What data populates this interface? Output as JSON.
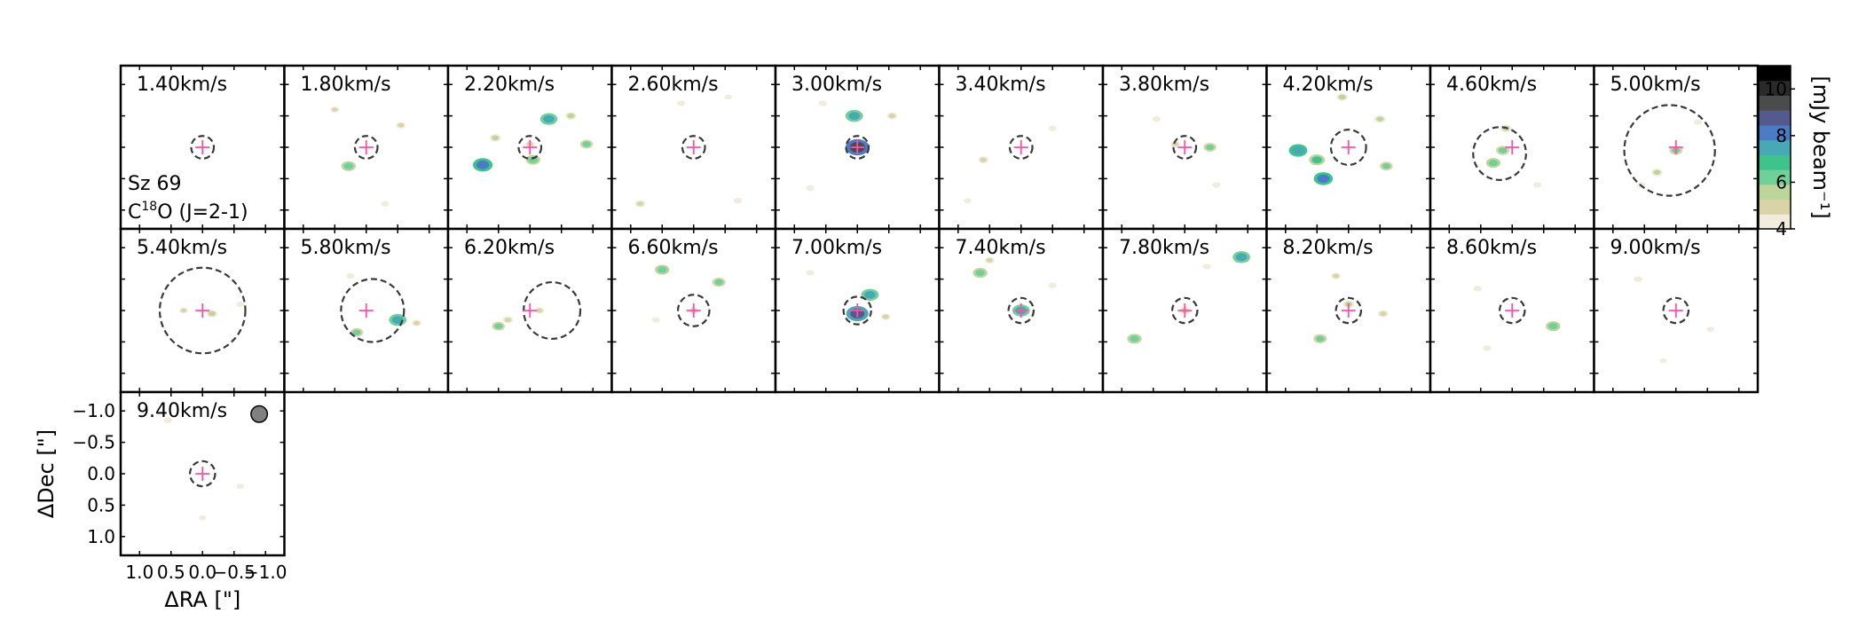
{
  "chart_data": {
    "type": "heatmap",
    "subtype": "channel-map grid",
    "object_label": "Sz 69",
    "line_label": {
      "pre": "C",
      "sup": "18",
      "post": "O (J=2-1)"
    },
    "channel_unit": "km/s",
    "channels": [
      {
        "velocity": "1.40",
        "mask": [
          [
            0.0,
            0.0,
            0.18,
            0.18
          ]
        ]
      },
      {
        "velocity": "1.80",
        "mask": [
          [
            0.0,
            0.0,
            0.18,
            0.18
          ]
        ],
        "blobs": [
          [
            0.28,
            0.3,
            6.5
          ],
          [
            -0.55,
            -0.35,
            5
          ],
          [
            0.5,
            -0.6,
            4.8
          ],
          [
            -0.3,
            0.9,
            4.5
          ]
        ]
      },
      {
        "velocity": "2.20",
        "mask": [
          [
            0.0,
            0.0,
            0.18,
            0.18
          ]
        ],
        "blobs": [
          [
            0.75,
            0.28,
            8.2
          ],
          [
            -0.05,
            0.2,
            6.5
          ],
          [
            -0.9,
            -0.05,
            6
          ],
          [
            0.55,
            -0.15,
            5.5
          ],
          [
            -0.65,
            -0.5,
            5.5
          ],
          [
            -0.3,
            -0.45,
            7.4
          ],
          [
            0.0,
            -0.05,
            5
          ]
        ]
      },
      {
        "velocity": "2.60",
        "mask": [
          [
            0.0,
            0.0,
            0.18,
            0.18
          ]
        ],
        "blobs": [
          [
            0.85,
            0.9,
            5.2
          ],
          [
            -0.7,
            0.85,
            4.5
          ],
          [
            0.2,
            -0.7,
            4.5
          ],
          [
            -0.55,
            -0.8,
            4.2
          ]
        ]
      },
      {
        "velocity": "3.00",
        "mask": [
          [
            0.0,
            0.0,
            0.18,
            0.18
          ]
        ],
        "blobs": [
          [
            0.0,
            0.0,
            9.5
          ],
          [
            0.05,
            -0.5,
            7.5
          ],
          [
            -0.55,
            -0.5,
            5.2
          ],
          [
            0.75,
            0.65,
            4.5
          ],
          [
            0.55,
            -0.7,
            4.5
          ]
        ]
      },
      {
        "velocity": "3.40",
        "mask": [
          [
            0.0,
            0.0,
            0.18,
            0.18
          ]
        ],
        "blobs": [
          [
            0.6,
            0.2,
            5.2
          ],
          [
            -0.5,
            -0.3,
            4.5
          ],
          [
            0.85,
            0.85,
            4.3
          ]
        ]
      },
      {
        "velocity": "3.80",
        "mask": [
          [
            0.0,
            0.0,
            0.18,
            0.18
          ]
        ],
        "blobs": [
          [
            -0.4,
            0.0,
            6
          ],
          [
            0.15,
            -0.05,
            5
          ],
          [
            -0.5,
            0.6,
            4.5
          ],
          [
            0.45,
            -0.45,
            4.5
          ]
        ]
      },
      {
        "velocity": "4.20",
        "mask": [
          [
            0.0,
            0.0,
            0.28,
            0.28
          ]
        ],
        "blobs": [
          [
            0.4,
            0.5,
            8
          ],
          [
            0.5,
            0.2,
            7
          ],
          [
            0.8,
            0.05,
            7.8
          ],
          [
            -0.6,
            0.3,
            6
          ],
          [
            -0.5,
            -0.45,
            5.5
          ],
          [
            0.1,
            -0.8,
            5.5
          ]
        ]
      },
      {
        "velocity": "4.60",
        "mask": [
          [
            0.2,
            0.1,
            0.42,
            0.68
          ]
        ],
        "blobs": [
          [
            0.3,
            0.25,
            6.5
          ],
          [
            0.15,
            0.05,
            6.2
          ],
          [
            0.1,
            -0.3,
            5.5
          ],
          [
            -0.4,
            0.6,
            4.5
          ]
        ]
      },
      {
        "velocity": "5.00",
        "mask": [
          [
            0.1,
            0.05,
            0.72,
            0.72
          ]
        ],
        "blobs": [
          [
            0.0,
            0.05,
            6
          ],
          [
            0.3,
            0.4,
            5.5
          ],
          [
            0.55,
            0.6,
            4.5
          ],
          [
            -0.35,
            -0.4,
            4.5
          ]
        ]
      },
      {
        "velocity": "5.40",
        "mask": [
          [
            0.0,
            0.0,
            0.68,
            0.68
          ]
        ],
        "blobs": [
          [
            -0.15,
            0.05,
            5.5
          ],
          [
            0.3,
            0.0,
            4.7
          ],
          [
            -0.6,
            -0.1,
            4.5
          ]
        ]
      },
      {
        "velocity": "5.80",
        "mask": [
          [
            -0.1,
            0.0,
            0.5,
            0.68
          ]
        ],
        "blobs": [
          [
            -0.5,
            0.15,
            7.5
          ],
          [
            0.15,
            0.35,
            6
          ],
          [
            -0.8,
            0.2,
            5
          ],
          [
            0.25,
            -0.55,
            4.5
          ]
        ]
      },
      {
        "velocity": "6.20",
        "mask": [
          [
            -0.35,
            0.0,
            0.45,
            0.42
          ]
        ],
        "blobs": [
          [
            0.5,
            0.25,
            6
          ],
          [
            0.35,
            0.15,
            5.2
          ],
          [
            -0.15,
            0.0,
            5
          ]
        ]
      },
      {
        "velocity": "6.60",
        "mask": [
          [
            0.0,
            0.0,
            0.25,
            0.22
          ]
        ],
        "blobs": [
          [
            0.0,
            0.0,
            5.2
          ],
          [
            -0.4,
            -0.45,
            6.2
          ],
          [
            0.5,
            -0.65,
            6.5
          ],
          [
            0.6,
            0.15,
            4.5
          ]
        ]
      },
      {
        "velocity": "7.00",
        "mask": [
          [
            0.0,
            0.0,
            0.22,
            0.22
          ]
        ],
        "blobs": [
          [
            0.0,
            0.05,
            9
          ],
          [
            -0.2,
            -0.25,
            7.5
          ],
          [
            -0.45,
            0.1,
            5
          ],
          [
            0.75,
            -0.6,
            4.5
          ]
        ]
      },
      {
        "velocity": "7.40",
        "mask": [
          [
            0.0,
            0.0,
            0.2,
            0.2
          ]
        ],
        "blobs": [
          [
            0.0,
            0.0,
            7.5
          ],
          [
            0.65,
            -0.6,
            6.5
          ],
          [
            0.5,
            -0.8,
            5
          ],
          [
            -0.5,
            -0.4,
            4.5
          ]
        ]
      },
      {
        "velocity": "7.80",
        "mask": [
          [
            0.0,
            0.0,
            0.2,
            0.2
          ]
        ],
        "blobs": [
          [
            0.0,
            0.0,
            5.5
          ],
          [
            -0.9,
            -0.85,
            7.5
          ],
          [
            0.8,
            0.45,
            6.5
          ],
          [
            -0.35,
            -0.7,
            4.5
          ]
        ]
      },
      {
        "velocity": "8.20",
        "mask": [
          [
            0.0,
            0.0,
            0.2,
            0.2
          ]
        ],
        "blobs": [
          [
            0.0,
            -0.1,
            5.5
          ],
          [
            0.45,
            0.45,
            6.2
          ],
          [
            -0.55,
            0.05,
            5.2
          ],
          [
            0.2,
            -0.55,
            5
          ]
        ]
      },
      {
        "velocity": "8.60",
        "mask": [
          [
            0.0,
            0.0,
            0.2,
            0.2
          ]
        ],
        "blobs": [
          [
            -0.65,
            0.25,
            6.5
          ],
          [
            0.4,
            0.6,
            4.5
          ],
          [
            0.55,
            -0.35,
            4.5
          ]
        ]
      },
      {
        "velocity": "9.00",
        "mask": [
          [
            0.0,
            0.0,
            0.2,
            0.2
          ]
        ],
        "blobs": [
          [
            0.6,
            -0.5,
            4.6
          ],
          [
            -0.55,
            0.3,
            4.3
          ],
          [
            0.2,
            0.8,
            4.2
          ]
        ]
      },
      {
        "velocity": "9.40",
        "mask": [
          [
            0.0,
            0.0,
            0.2,
            0.2
          ]
        ],
        "blobs": [
          [
            0.55,
            -0.85,
            4.6
          ],
          [
            -0.6,
            0.2,
            4.3
          ],
          [
            0.0,
            0.7,
            4.2
          ]
        ]
      }
    ],
    "xlabel": "ΔRA [\"]",
    "ylabel": "ΔDec [\"]",
    "xlim": [
      1.3,
      -1.3
    ],
    "ylim": [
      -1.3,
      1.3
    ],
    "x_ticks": [
      "1.0",
      "0.5",
      "0.0",
      "−0.5",
      "−1.0"
    ],
    "x_tick_values": [
      1.0,
      0.5,
      0.0,
      -0.5,
      -1.0
    ],
    "y_ticks": [
      "1.0",
      "0.5",
      "0.0",
      "−0.5",
      "−1.0"
    ],
    "y_tick_values": [
      1.0,
      0.5,
      0.0,
      -0.5,
      -1.0
    ],
    "colorbar": {
      "label": "[mJy beam⁻¹]",
      "min": 4,
      "max": 11,
      "ticks": [
        4,
        6,
        8,
        10
      ],
      "tick_labels": [
        "4",
        "6",
        "8",
        "10"
      ],
      "colors": [
        "#f2ecdc",
        "#d9d4a8",
        "#bcd59a",
        "#6fd09a",
        "#3cc48c",
        "#49a8b6",
        "#4a7bc4",
        "#545a8c",
        "#4b4a4c",
        "#2a2a28",
        "#000000"
      ]
    },
    "beam": {
      "x": -0.9,
      "y": -0.95,
      "width": 0.26,
      "height": 0.24,
      "color": "#808080"
    },
    "stellar_position": {
      "x": 0.0,
      "y": 0.0,
      "color": "#ff4fa8"
    },
    "mask_color": "#3a3a3a"
  }
}
